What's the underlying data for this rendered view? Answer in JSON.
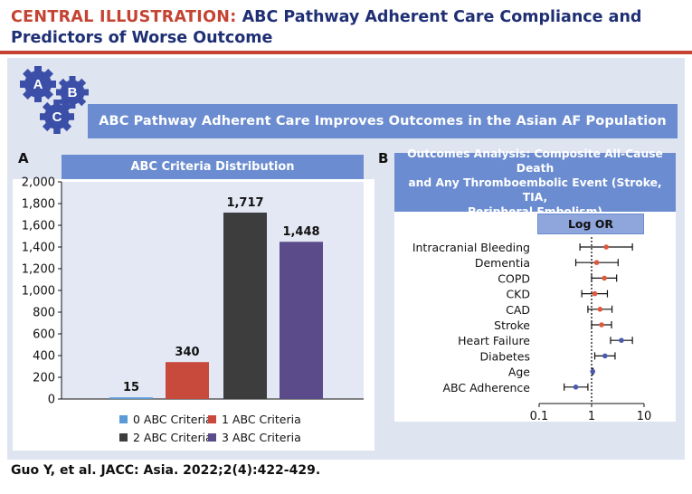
{
  "header": {
    "lead": "CENTRAL ILLUSTRATION:",
    "title": "ABC Pathway Adherent Care Compliance and Predictors of Worse Outcome"
  },
  "gears": [
    "A",
    "B",
    "C"
  ],
  "banner": "ABC Pathway Adherent Care Improves Outcomes in the Asian AF Population",
  "panel_letters": {
    "a": "A",
    "b": "B"
  },
  "citation": "Guo Y, et al. JACC: Asia. 2022;2(4):422-429.",
  "colors": {
    "header_red": "#c44332",
    "header_navy": "#1f2f74",
    "banner_blue": "#6b8cd0",
    "bar_0": "#5b9bd5",
    "bar_1": "#c84a3d",
    "bar_2": "#3d3d3d",
    "bar_3": "#5b4b8a",
    "point_red": "#e0583d",
    "point_blue": "#4a5ab0"
  },
  "chart_data": [
    {
      "type": "bar",
      "title": "ABC Criteria Distribution",
      "categories": [
        "0 ABC Criteria",
        "1 ABC Criteria",
        "2 ABC Criteria",
        "3 ABC Criteria"
      ],
      "values": [
        15,
        340,
        1717,
        1448
      ],
      "value_labels": [
        "15",
        "340",
        "1,717",
        "1,448"
      ],
      "ylim": [
        0,
        2000
      ],
      "yticks": [
        "0",
        "200",
        "400",
        "600",
        "800",
        "1,000",
        "1,200",
        "1,400",
        "1,600",
        "1,800",
        "2,000"
      ],
      "xlabel": "",
      "ylabel": "",
      "legend": "bottom"
    },
    {
      "type": "scatter",
      "subtype": "forest-plot",
      "title_lines": [
        "Outcomes Analysis: Composite All-Cause Death",
        "and Any Thromboembolic Event (Stroke, TIA,",
        "Peripheral Embolism)"
      ],
      "xlabel": "Log OR",
      "x_scale": "log",
      "xlim": [
        0.1,
        10
      ],
      "xticks": [
        "0.1",
        "1",
        "10"
      ],
      "reference_line": 1,
      "rows": [
        {
          "label": "Intracranial Bleeding",
          "or": 1.9,
          "lo": 0.6,
          "hi": 6.0,
          "group": "red"
        },
        {
          "label": "Dementia",
          "or": 1.25,
          "lo": 0.5,
          "hi": 3.2,
          "group": "red"
        },
        {
          "label": "COPD",
          "or": 1.75,
          "lo": 1.0,
          "hi": 3.0,
          "group": "red"
        },
        {
          "label": "CKD",
          "or": 1.15,
          "lo": 0.65,
          "hi": 2.0,
          "group": "red"
        },
        {
          "label": "CAD",
          "or": 1.45,
          "lo": 0.85,
          "hi": 2.45,
          "group": "red"
        },
        {
          "label": "Stroke",
          "or": 1.55,
          "lo": 1.0,
          "hi": 2.4,
          "group": "red"
        },
        {
          "label": "Heart Failure",
          "or": 3.7,
          "lo": 2.3,
          "hi": 6.0,
          "group": "blue"
        },
        {
          "label": "Diabetes",
          "or": 1.8,
          "lo": 1.15,
          "hi": 2.8,
          "group": "blue"
        },
        {
          "label": "Age",
          "or": 1.05,
          "lo": 1.03,
          "hi": 1.07,
          "group": "blue"
        },
        {
          "label": "ABC Adherence",
          "or": 0.5,
          "lo": 0.3,
          "hi": 0.85,
          "group": "blue"
        }
      ]
    }
  ]
}
